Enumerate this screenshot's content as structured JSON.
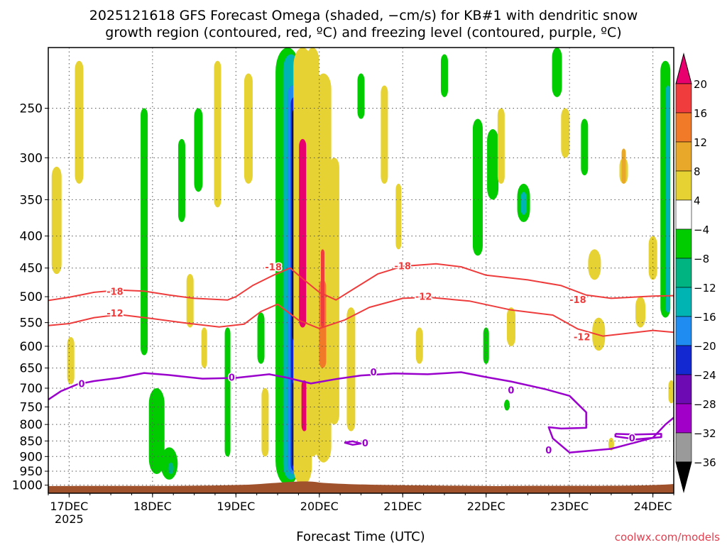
{
  "chart_data": {
    "type": "heatmap",
    "title_line1": "2025121618 GFS Forecast Omega (shaded, −cm/s) for KB#1 with dendritic snow",
    "title_line2": "growth region (contoured, red, ºC) and freezing level (contoured, purple, ºC)",
    "xlabel": "Forecast Time (UTC)",
    "ylabel": "",
    "credit": "coolwx.com/models",
    "x_ticks": [
      {
        "label": "17DEC",
        "sub": "2025",
        "day": 0
      },
      {
        "label": "18DEC",
        "sub": "",
        "day": 1
      },
      {
        "label": "19DEC",
        "sub": "",
        "day": 2
      },
      {
        "label": "20DEC",
        "sub": "",
        "day": 3
      },
      {
        "label": "21DEC",
        "sub": "",
        "day": 4
      },
      {
        "label": "22DEC",
        "sub": "",
        "day": 5
      },
      {
        "label": "23DEC",
        "sub": "",
        "day": 6
      },
      {
        "label": "24DEC",
        "sub": "",
        "day": 7
      }
    ],
    "x_range_days": [
      -0.25,
      7.25
    ],
    "y_scale": "log",
    "y_ticks": [
      250,
      300,
      350,
      400,
      450,
      500,
      550,
      600,
      650,
      700,
      750,
      800,
      850,
      900,
      950,
      1000
    ],
    "y_range_hpa": [
      200,
      1030
    ],
    "grid": "dotted",
    "colorbar": {
      "labels": [
        "20",
        "16",
        "12",
        "8",
        "4",
        "−4",
        "−8",
        "−12",
        "−16",
        "−20",
        "−24",
        "−28",
        "−32",
        "−36"
      ],
      "colors": [
        "#e8006e",
        "#f03c3c",
        "#f07a28",
        "#e8a82a",
        "#e6d232",
        "#ffffff",
        "#00cc00",
        "#00b482",
        "#00b4b4",
        "#1e8cf0",
        "#1428d2",
        "#6e0ab4",
        "#a000c8",
        "#9a9a9a",
        "#000000"
      ]
    },
    "dendritic_contours": [
      {
        "label": "-18",
        "points": [
          [
            -0.25,
            507
          ],
          [
            0,
            501
          ],
          [
            0.3,
            492
          ],
          [
            0.6,
            488
          ],
          [
            0.9,
            490
          ],
          [
            1.2,
            497
          ],
          [
            1.5,
            503
          ],
          [
            1.9,
            506
          ],
          [
            2.0,
            500
          ],
          [
            2.2,
            480
          ],
          [
            2.45,
            462
          ],
          [
            2.65,
            450
          ],
          [
            2.8,
            468
          ],
          [
            3.0,
            492
          ],
          [
            3.2,
            506
          ],
          [
            3.4,
            487
          ],
          [
            3.7,
            460
          ],
          [
            4.0,
            447
          ],
          [
            4.4,
            443
          ],
          [
            4.7,
            448
          ],
          [
            5.0,
            462
          ],
          [
            5.5,
            470
          ],
          [
            5.9,
            480
          ],
          [
            6.2,
            497
          ],
          [
            6.5,
            503
          ],
          [
            7.0,
            499
          ],
          [
            7.25,
            498
          ]
        ],
        "labels_at": [
          [
            0.55,
            490
          ],
          [
            2.45,
            448
          ],
          [
            4.0,
            446
          ],
          [
            6.1,
            505
          ]
        ]
      },
      {
        "label": "-12",
        "points": [
          [
            -0.25,
            556
          ],
          [
            0,
            552
          ],
          [
            0.3,
            540
          ],
          [
            0.6,
            534
          ],
          [
            1.0,
            542
          ],
          [
            1.4,
            551
          ],
          [
            1.8,
            559
          ],
          [
            2.1,
            553
          ],
          [
            2.3,
            528
          ],
          [
            2.5,
            514
          ],
          [
            2.75,
            545
          ],
          [
            3.0,
            562
          ],
          [
            3.3,
            545
          ],
          [
            3.6,
            520
          ],
          [
            4.0,
            503
          ],
          [
            4.3,
            501
          ],
          [
            4.8,
            508
          ],
          [
            5.3,
            525
          ],
          [
            5.8,
            535
          ],
          [
            6.1,
            563
          ],
          [
            6.4,
            578
          ],
          [
            6.7,
            572
          ],
          [
            7.0,
            566
          ],
          [
            7.25,
            570
          ]
        ],
        "labels_at": [
          [
            0.55,
            531
          ],
          [
            4.25,
            499
          ],
          [
            6.15,
            579
          ]
        ]
      }
    ],
    "freezing_contours": [
      {
        "label": "0",
        "points": [
          [
            -0.25,
            730
          ],
          [
            -0.1,
            708
          ],
          [
            0.1,
            690
          ],
          [
            0.3,
            682
          ],
          [
            0.6,
            674
          ],
          [
            0.9,
            662
          ],
          [
            1.2,
            667
          ],
          [
            1.6,
            676
          ],
          [
            2.0,
            674
          ],
          [
            2.4,
            665
          ],
          [
            2.6,
            673
          ],
          [
            2.9,
            688
          ],
          [
            3.2,
            677
          ],
          [
            3.5,
            668
          ],
          [
            3.9,
            663
          ],
          [
            4.3,
            665
          ],
          [
            4.7,
            660
          ],
          [
            5.0,
            672
          ],
          [
            5.3,
            683
          ],
          [
            5.7,
            702
          ],
          [
            6.0,
            720
          ],
          [
            6.2,
            765
          ],
          [
            6.2,
            810
          ],
          [
            5.9,
            812
          ],
          [
            5.75,
            808
          ],
          [
            5.8,
            842
          ],
          [
            6.0,
            887
          ],
          [
            6.5,
            875
          ],
          [
            7.0,
            840
          ],
          [
            7.15,
            800
          ],
          [
            7.25,
            780
          ]
        ],
        "labels_at": [
          [
            0.15,
            688
          ],
          [
            1.95,
            672
          ],
          [
            3.65,
            659
          ],
          [
            5.3,
            705
          ],
          [
            5.75,
            878
          ]
        ]
      },
      {
        "label": "0",
        "points": [
          [
            3.3,
            855
          ],
          [
            3.4,
            851
          ],
          [
            3.5,
            858
          ],
          [
            3.4,
            862
          ],
          [
            3.3,
            855
          ]
        ],
        "labels_at": [
          [
            3.55,
            856
          ]
        ]
      },
      {
        "label": "0",
        "points": [
          [
            6.55,
            828
          ],
          [
            6.8,
            830
          ],
          [
            7.1,
            828
          ],
          [
            7.1,
            838
          ],
          [
            6.8,
            845
          ],
          [
            6.55,
            836
          ],
          [
            6.55,
            828
          ]
        ],
        "labels_at": [
          [
            6.75,
            840
          ]
        ]
      }
    ]
  }
}
